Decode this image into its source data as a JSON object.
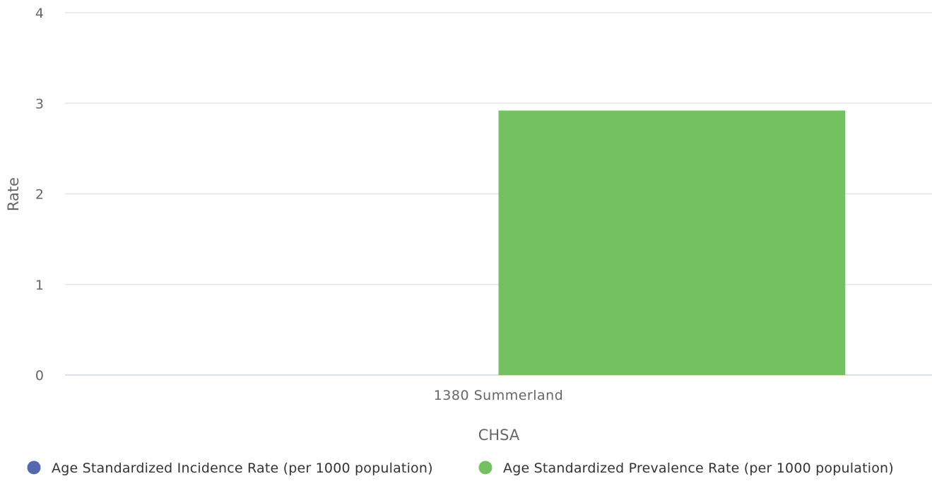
{
  "chart_data": {
    "type": "bar",
    "title": "",
    "xlabel": "CHSA",
    "ylabel": "Rate",
    "ylim": [
      0,
      4
    ],
    "yticks": [
      0,
      1,
      2,
      3,
      4
    ],
    "categories": [
      "1380 Summerland"
    ],
    "grid": true,
    "legend_position": "bottom",
    "series": [
      {
        "name": "Age Standardized Incidence Rate (per 1000 population)",
        "color": "#5567ae",
        "values": [
          null
        ]
      },
      {
        "name": "Age Standardized Prevalence Rate (per 1000 population)",
        "color": "#74c162",
        "values": [
          2.92
        ]
      }
    ]
  }
}
